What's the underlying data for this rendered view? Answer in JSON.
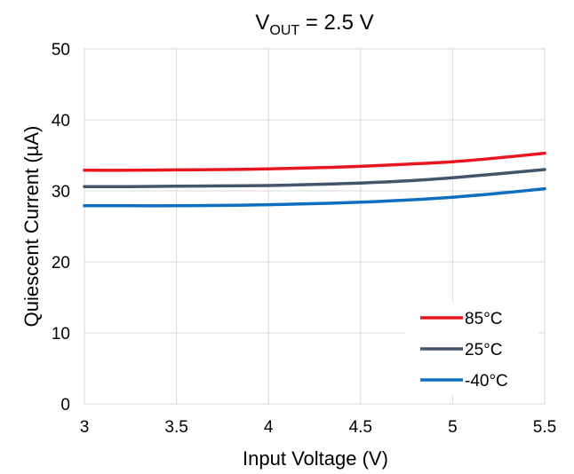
{
  "chart_data": {
    "type": "line",
    "title": "V",
    "title_sub": "OUT",
    "title_suffix": " = 2.5 V",
    "xlabel": "Input Voltage (V)",
    "ylabel": "Quiescent Current (µA)",
    "xlim": [
      3,
      5.5
    ],
    "ylim": [
      0,
      50
    ],
    "xticks": [
      3,
      3.5,
      4,
      4.5,
      5,
      5.5
    ],
    "xtick_labels": [
      "3",
      "3.5",
      "4",
      "4.5",
      "5",
      "5.5"
    ],
    "yticks": [
      0,
      10,
      20,
      30,
      40,
      50
    ],
    "ytick_labels": [
      "0",
      "10",
      "20",
      "30",
      "40",
      "50"
    ],
    "grid": true,
    "legend_position": "bottom-right",
    "x": [
      3.0,
      3.25,
      3.5,
      3.75,
      4.0,
      4.25,
      4.5,
      4.75,
      5.0,
      5.25,
      5.5
    ],
    "series": [
      {
        "name": "85°C",
        "color": "#e8171f",
        "values": [
          32.9,
          32.9,
          32.95,
          33.0,
          33.1,
          33.25,
          33.45,
          33.75,
          34.1,
          34.65,
          35.3
        ]
      },
      {
        "name": "25°C",
        "color": "#44546a",
        "values": [
          30.6,
          30.6,
          30.65,
          30.7,
          30.75,
          30.9,
          31.1,
          31.4,
          31.85,
          32.4,
          33.0
        ]
      },
      {
        "name": "-40°C",
        "color": "#0e6fc0",
        "values": [
          27.9,
          27.9,
          27.9,
          27.95,
          28.05,
          28.2,
          28.4,
          28.7,
          29.1,
          29.65,
          30.3
        ]
      }
    ]
  }
}
